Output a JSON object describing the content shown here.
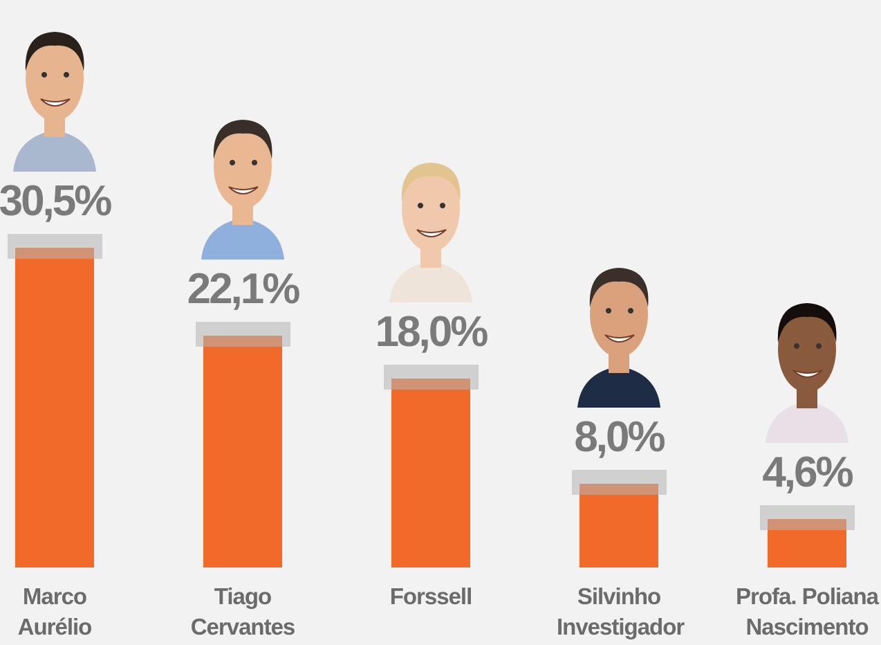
{
  "chart_data": {
    "type": "bar",
    "categories": [
      "Marco Aurélio",
      "Tiago Cervantes",
      "Forssell",
      "Silvinho Investigador",
      "Profa. Poliana Nascimento"
    ],
    "values": [
      30.5,
      22.1,
      18.0,
      8.0,
      4.6
    ],
    "value_labels": [
      "30,5%",
      "22,1%",
      "18,0%",
      "8,0%",
      "4,6%"
    ],
    "color": "#f26a2a"
  }
}
